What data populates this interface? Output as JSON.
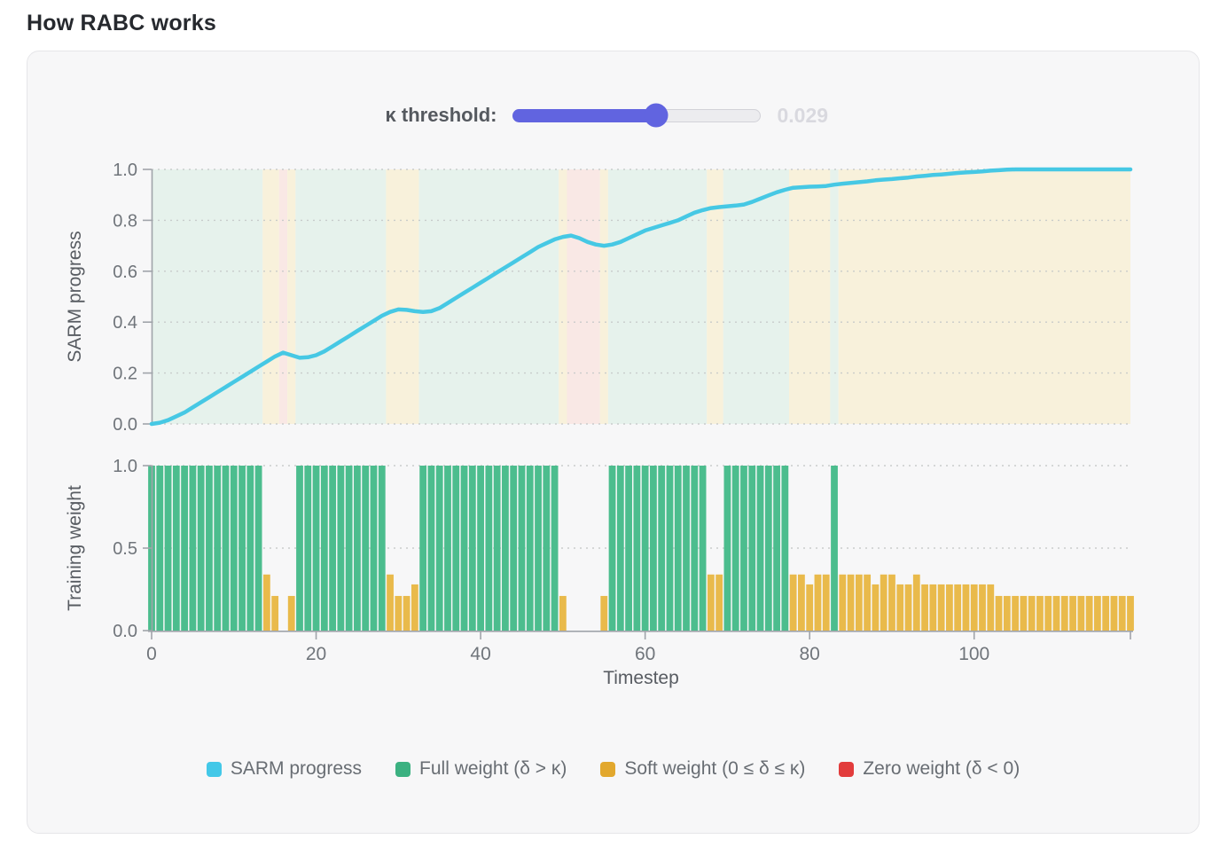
{
  "page_title": "How RABC works",
  "slider": {
    "label": "κ threshold:",
    "value": "0.029",
    "percent": 57.6,
    "fill_color": "#6164e0",
    "track_color": "#ececef"
  },
  "legend": {
    "items": [
      {
        "label": "SARM progress",
        "color": "#43c8e8"
      },
      {
        "label": "Full weight (δ > κ)",
        "color": "#3bb181"
      },
      {
        "label": "Soft weight (0 ≤ δ ≤ κ)",
        "color": "#e2a82e"
      },
      {
        "label": "Zero weight (δ < 0)",
        "color": "#e23c3c"
      }
    ]
  },
  "chart_data": [
    {
      "type": "line",
      "title": "",
      "ylabel": "SARM progress",
      "xlabel": "",
      "ylim": [
        0,
        1
      ],
      "xlim": [
        0,
        119
      ],
      "yticks": [
        "0.0",
        "0.2",
        "0.4",
        "0.6",
        "0.8",
        "1.0"
      ],
      "grid": "dotted horizontal",
      "line_color": "#46c8e4",
      "background_bands": {
        "note": "vertical tint per timestep from weight class of bottom chart",
        "colors": {
          "F": "#e6f2ec",
          "S": "#f8f1db",
          "Z": "#f9e8e5"
        }
      },
      "series": [
        {
          "name": "SARM progress",
          "x_start": 0,
          "x_step": 1,
          "values": [
            0.0,
            0.005,
            0.015,
            0.03,
            0.045,
            0.065,
            0.085,
            0.105,
            0.125,
            0.145,
            0.165,
            0.185,
            0.205,
            0.225,
            0.245,
            0.265,
            0.28,
            0.27,
            0.26,
            0.262,
            0.27,
            0.285,
            0.305,
            0.325,
            0.345,
            0.365,
            0.385,
            0.405,
            0.425,
            0.44,
            0.45,
            0.448,
            0.443,
            0.44,
            0.443,
            0.455,
            0.475,
            0.495,
            0.515,
            0.535,
            0.555,
            0.575,
            0.595,
            0.615,
            0.635,
            0.655,
            0.675,
            0.695,
            0.71,
            0.725,
            0.735,
            0.74,
            0.73,
            0.715,
            0.705,
            0.7,
            0.705,
            0.715,
            0.73,
            0.745,
            0.76,
            0.77,
            0.78,
            0.79,
            0.8,
            0.815,
            0.83,
            0.84,
            0.848,
            0.852,
            0.855,
            0.858,
            0.862,
            0.872,
            0.885,
            0.898,
            0.91,
            0.92,
            0.928,
            0.93,
            0.932,
            0.933,
            0.935,
            0.94,
            0.944,
            0.947,
            0.95,
            0.953,
            0.957,
            0.96,
            0.962,
            0.965,
            0.968,
            0.972,
            0.975,
            0.978,
            0.98,
            0.983,
            0.986,
            0.988,
            0.99,
            0.992,
            0.995,
            0.997,
            0.999,
            1.0,
            1.0,
            1.0,
            1.0,
            1.0,
            1.0,
            1.0,
            1.0,
            1.0,
            1.0,
            1.0,
            1.0,
            1.0,
            1.0,
            1.0
          ]
        }
      ]
    },
    {
      "type": "bar",
      "title": "",
      "ylabel": "Training weight",
      "xlabel": "Timestep",
      "ylim": [
        0,
        1
      ],
      "xlim": [
        0,
        119
      ],
      "yticks": [
        "0.0",
        "0.5",
        "1.0"
      ],
      "xticks": [
        0,
        20,
        40,
        60,
        80,
        100
      ],
      "end_tick": 119,
      "grid": "dotted horizontal",
      "bar_colors": {
        "F": "#4cbd8e",
        "S": "#e9ba4b",
        "Z": "none"
      },
      "class_meaning": {
        "F": "Full weight (δ > κ)",
        "S": "Soft weight (0 ≤ δ ≤ κ)",
        "Z": "Zero weight (δ < 0)"
      },
      "classes": "FFFFFFFFFFFFFFSSZSFFFFFFFFFFFSSSSFFFFFFFFFFFFFFFFFSZZZZSFFFFFFFFFFFFSSFFFFFFFFSSSSSFSSSSSSSSSSSSSSSSSSSSSSSSSSSSSSSSSSSS",
      "values": [
        1,
        1,
        1,
        1,
        1,
        1,
        1,
        1,
        1,
        1,
        1,
        1,
        1,
        1,
        0.34,
        0.21,
        0,
        0.21,
        1,
        1,
        1,
        1,
        1,
        1,
        1,
        1,
        1,
        1,
        1,
        0.34,
        0.21,
        0.21,
        0.28,
        1,
        1,
        1,
        1,
        1,
        1,
        1,
        1,
        1,
        1,
        1,
        1,
        1,
        1,
        1,
        1,
        1,
        0.21,
        0,
        0,
        0,
        0,
        0.21,
        1,
        1,
        1,
        1,
        1,
        1,
        1,
        1,
        1,
        1,
        1,
        1,
        0.34,
        0.34,
        1,
        1,
        1,
        1,
        1,
        1,
        1,
        1,
        0.34,
        0.34,
        0.28,
        0.34,
        0.34,
        1,
        0.34,
        0.34,
        0.34,
        0.34,
        0.28,
        0.34,
        0.34,
        0.28,
        0.28,
        0.34,
        0.28,
        0.28,
        0.28,
        0.28,
        0.28,
        0.28,
        0.28,
        0.28,
        0.28,
        0.21,
        0.21,
        0.21,
        0.21,
        0.21,
        0.21,
        0.21,
        0.21,
        0.21,
        0.21,
        0.21,
        0.21,
        0.21,
        0.21,
        0.21,
        0.21,
        0.21
      ]
    }
  ]
}
